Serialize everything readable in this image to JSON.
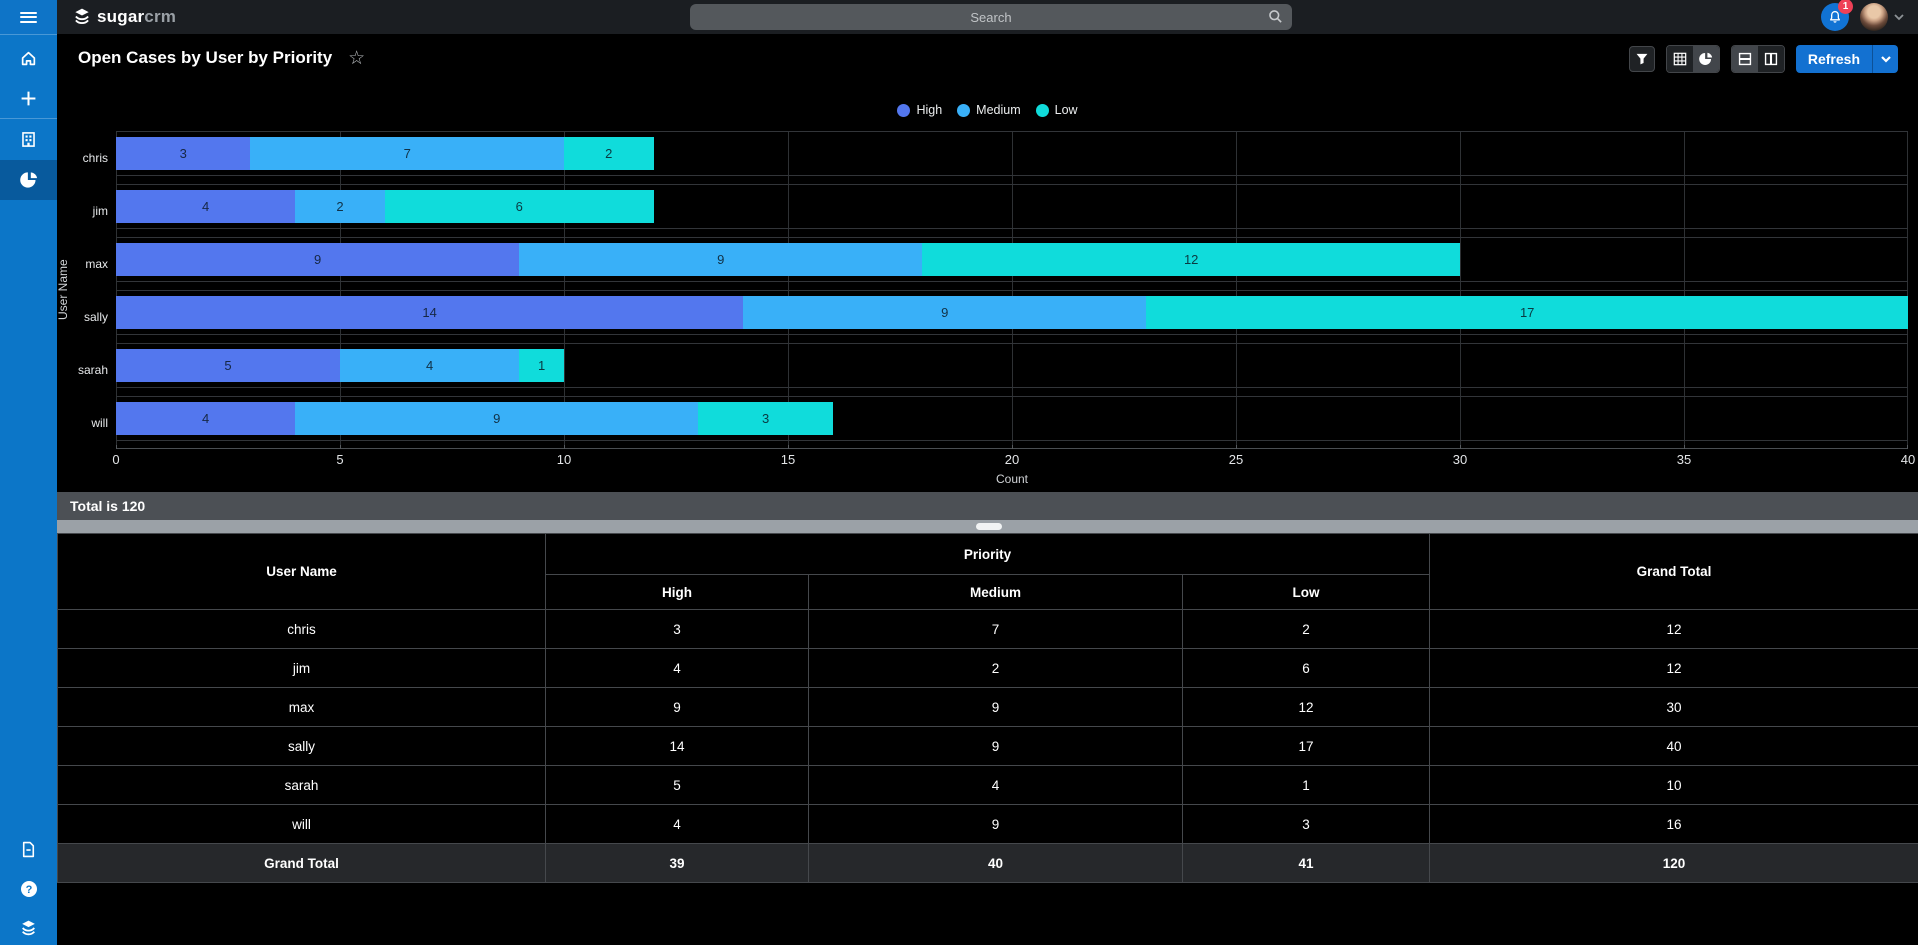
{
  "topbar": {
    "logo": {
      "brand_bold": "sugar",
      "brand_light": "crm"
    },
    "search": {
      "placeholder": "Search"
    },
    "notifications": {
      "count": "1"
    }
  },
  "sidebar": {
    "active_item": "charts"
  },
  "header": {
    "title": "Open Cases by User by Priority",
    "refresh_label": "Refresh"
  },
  "chart_data": {
    "type": "bar",
    "orientation": "horizontal",
    "stacked": true,
    "categories": [
      "chris",
      "jim",
      "max",
      "sally",
      "sarah",
      "will"
    ],
    "series": [
      {
        "name": "High",
        "color": "#5377ee",
        "values": [
          3,
          4,
          9,
          14,
          5,
          4
        ]
      },
      {
        "name": "Medium",
        "color": "#39b0f8",
        "values": [
          7,
          2,
          9,
          9,
          4,
          9
        ]
      },
      {
        "name": "Low",
        "color": "#10dcdb",
        "values": [
          2,
          6,
          12,
          17,
          1,
          3
        ]
      }
    ],
    "xlabel": "Count",
    "ylabel": "User Name",
    "xlim": [
      0,
      40
    ],
    "xticks": [
      0,
      5,
      10,
      15,
      20,
      25,
      30,
      35,
      40
    ],
    "legend_position": "top",
    "grid": true
  },
  "total_bar": {
    "text": "Total is 120"
  },
  "table": {
    "user_col_header": "User Name",
    "group_header": "Priority",
    "sub_headers": [
      "High",
      "Medium",
      "Low"
    ],
    "grand_total_header": "Grand Total",
    "rows": [
      {
        "user": "chris",
        "values": [
          3,
          7,
          2
        ],
        "total": 12
      },
      {
        "user": "jim",
        "values": [
          4,
          2,
          6
        ],
        "total": 12
      },
      {
        "user": "max",
        "values": [
          9,
          9,
          12
        ],
        "total": 30
      },
      {
        "user": "sally",
        "values": [
          14,
          9,
          17
        ],
        "total": 40
      },
      {
        "user": "sarah",
        "values": [
          5,
          4,
          1
        ],
        "total": 10
      },
      {
        "user": "will",
        "values": [
          4,
          9,
          3
        ],
        "total": 16
      }
    ],
    "footer": {
      "user": "Grand Total",
      "values": [
        39,
        40,
        41
      ],
      "total": 120
    }
  },
  "colors": {
    "sidebar_blue": "#0c76c8",
    "sidebar_active": "#085a9d",
    "refresh_blue": "#1371d1",
    "badge_red": "#ef4056",
    "total_bar_bg": "#4c5055"
  }
}
